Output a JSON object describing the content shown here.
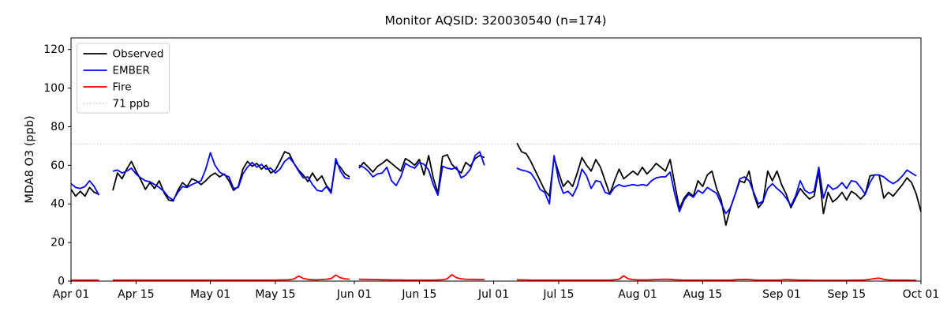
{
  "chart_data": {
    "type": "line",
    "title": "Monitor AQSID: 320030540 (n=174)",
    "xlabel": "",
    "ylabel": "MDA8 O3 (ppb)",
    "ylim": [
      0,
      126
    ],
    "y_ticks": [
      0,
      20,
      40,
      60,
      80,
      100,
      120
    ],
    "x_range_days": 183,
    "x_ticks": [
      {
        "label": "Apr 01",
        "day": 0
      },
      {
        "label": "Apr 15",
        "day": 14
      },
      {
        "label": "May 01",
        "day": 30
      },
      {
        "label": "May 15",
        "day": 44
      },
      {
        "label": "Jun 01",
        "day": 61
      },
      {
        "label": "Jun 15",
        "day": 75
      },
      {
        "label": "Jul 01",
        "day": 91
      },
      {
        "label": "Jul 15",
        "day": 105
      },
      {
        "label": "Aug 01",
        "day": 122
      },
      {
        "label": "Aug 15",
        "day": 136
      },
      {
        "label": "Sep 01",
        "day": 153
      },
      {
        "label": "Sep 15",
        "day": 167
      },
      {
        "label": "Oct 01",
        "day": 183
      }
    ],
    "threshold": {
      "label": "71 ppb",
      "value": 71,
      "color": "#d3d3d3",
      "dashed": true
    },
    "legend_position": "upper-left",
    "grid": false,
    "note": "values are daily MDA8 O3 in ppb starting Apr 01; null = missing day",
    "series": [
      {
        "name": "Observed",
        "color": "#000000",
        "values": [
          47.5,
          44,
          46.5,
          44,
          48.5,
          46,
          45,
          null,
          null,
          47,
          56,
          53,
          58,
          62,
          57,
          52.5,
          47.5,
          51,
          48,
          52,
          46,
          42,
          41.5,
          47,
          51,
          49,
          53,
          52,
          50,
          52,
          54.5,
          56,
          54,
          55.5,
          52,
          47,
          49,
          58,
          62,
          59.5,
          61,
          58,
          60,
          56,
          57.5,
          62,
          67,
          66,
          61,
          57.5,
          55,
          51.5,
          56,
          52,
          54.5,
          49.5,
          46.5,
          61.5,
          59,
          55.5,
          54,
          null,
          58.5,
          61.5,
          59,
          56.5,
          59.5,
          61,
          63,
          61,
          59,
          57,
          63.5,
          62,
          60,
          63,
          55,
          65,
          53.5,
          45.5,
          64.5,
          65.5,
          60.5,
          58,
          56,
          61.5,
          59.5,
          63.5,
          65,
          64,
          null,
          null,
          null,
          null,
          null,
          null,
          71.5,
          67,
          66,
          62,
          57,
          52,
          47,
          44,
          64,
          56,
          49,
          52,
          49,
          56,
          64,
          60,
          57,
          63,
          59,
          52,
          45,
          52,
          58,
          53,
          55,
          57,
          55,
          59,
          55.5,
          58,
          61,
          59,
          57,
          63,
          50,
          37.5,
          43,
          46,
          44,
          52,
          49,
          55,
          57,
          48,
          42,
          29,
          38,
          45,
          52,
          51,
          57,
          45,
          38,
          41,
          57,
          52,
          57,
          50,
          45,
          38,
          43,
          48,
          45,
          42.5,
          44,
          57,
          35,
          46,
          41,
          43,
          46,
          42,
          46.5,
          45,
          42.5,
          45,
          54.5,
          55,
          55,
          43,
          46,
          44,
          47,
          50,
          53.5,
          51,
          45,
          36
        ]
      },
      {
        "name": "EMBER",
        "color": "#0000ff",
        "values": [
          50.5,
          48.5,
          48,
          49,
          52,
          49,
          44.5,
          null,
          null,
          57,
          57.5,
          56,
          57,
          58.5,
          55.5,
          53.5,
          52,
          51.5,
          50,
          48.5,
          46.5,
          43.5,
          42,
          46,
          49,
          48.5,
          50,
          51,
          52,
          58,
          66.5,
          60,
          56.5,
          55,
          54,
          48,
          48.5,
          55.5,
          59,
          61.5,
          59,
          60.5,
          58,
          58.5,
          56,
          58,
          62,
          64,
          61,
          57,
          53.5,
          54,
          50,
          47,
          46.5,
          49,
          45.5,
          63.5,
          57,
          53.5,
          53,
          null,
          60,
          59,
          57,
          54,
          55.5,
          56,
          59,
          52,
          49.5,
          54,
          61,
          59.5,
          58.5,
          61.5,
          60.5,
          57.5,
          50,
          44.5,
          59.5,
          58.5,
          58,
          59,
          53.5,
          55,
          58,
          65,
          67,
          60,
          null,
          null,
          null,
          null,
          null,
          null,
          58.5,
          57.5,
          57,
          56,
          52.5,
          47.5,
          46,
          40,
          65,
          52,
          45.5,
          46.5,
          44,
          49,
          58,
          54.5,
          48,
          52,
          51.5,
          46,
          45,
          48.5,
          50,
          49,
          49.5,
          50,
          49.5,
          50,
          49.5,
          52,
          53.5,
          54,
          54,
          56.5,
          45,
          36,
          42,
          45,
          43.5,
          47,
          45.5,
          48.5,
          47,
          45.5,
          40,
          35,
          38,
          45,
          53,
          54,
          52,
          46,
          40,
          41.5,
          48,
          50.5,
          48,
          46,
          43,
          39,
          44,
          52,
          47,
          45.5,
          46.5,
          59,
          43,
          50,
          47.5,
          48.5,
          51,
          48,
          52,
          51.5,
          48.5,
          45,
          51,
          55,
          55,
          54,
          52,
          50.5,
          52,
          54.5,
          57.5,
          56,
          54.5,
          null
        ]
      },
      {
        "name": "Fire",
        "color": "#ff0000",
        "values": [
          0.5,
          0.5,
          0.5,
          0.5,
          0.5,
          0.5,
          0.5,
          null,
          null,
          0.5,
          0.5,
          0.5,
          0.5,
          0.5,
          0.5,
          0.5,
          0.5,
          0.5,
          0.5,
          0.5,
          0.5,
          0.5,
          0.5,
          0.5,
          0.5,
          0.5,
          0.5,
          0.5,
          0.5,
          0.5,
          0.5,
          0.5,
          0.5,
          0.5,
          0.5,
          0.5,
          0.5,
          0.5,
          0.5,
          0.5,
          0.5,
          0.5,
          0.5,
          0.5,
          0.5,
          0.6,
          0.6,
          0.7,
          1.1,
          2.6,
          1.4,
          0.9,
          0.7,
          0.6,
          0.8,
          1.0,
          1.3,
          3.1,
          1.7,
          1.2,
          1.0,
          null,
          1.0,
          0.9,
          0.9,
          0.8,
          0.8,
          0.7,
          0.7,
          0.6,
          0.6,
          0.6,
          0.5,
          0.5,
          0.5,
          0.5,
          0.5,
          0.5,
          0.5,
          0.6,
          0.7,
          1.2,
          3.3,
          1.7,
          1.2,
          1.0,
          0.9,
          0.9,
          0.8,
          0.8,
          null,
          null,
          null,
          null,
          null,
          null,
          0.7,
          0.6,
          0.6,
          0.5,
          0.5,
          0.5,
          0.5,
          0.5,
          0.5,
          0.5,
          0.5,
          0.5,
          0.5,
          0.5,
          0.5,
          0.5,
          0.5,
          0.5,
          0.5,
          0.5,
          0.5,
          0.7,
          1.0,
          2.7,
          1.2,
          0.8,
          0.6,
          0.6,
          0.6,
          0.7,
          0.8,
          0.9,
          1.0,
          0.9,
          0.7,
          0.6,
          0.5,
          0.5,
          0.5,
          0.5,
          0.5,
          0.5,
          0.5,
          0.5,
          0.5,
          0.5,
          0.5,
          0.7,
          0.8,
          0.9,
          0.8,
          0.6,
          0.5,
          0.5,
          0.5,
          0.5,
          0.5,
          0.6,
          0.8,
          0.7,
          0.6,
          0.5,
          0.5,
          0.5,
          0.4,
          0.4,
          0.4,
          0.4,
          0.4,
          0.4,
          0.4,
          0.4,
          0.5,
          0.5,
          0.5,
          0.6,
          0.9,
          1.3,
          1.5,
          0.9,
          0.6,
          0.5,
          0.5,
          0.5,
          0.5,
          0.4,
          0.4,
          null
        ]
      }
    ]
  }
}
